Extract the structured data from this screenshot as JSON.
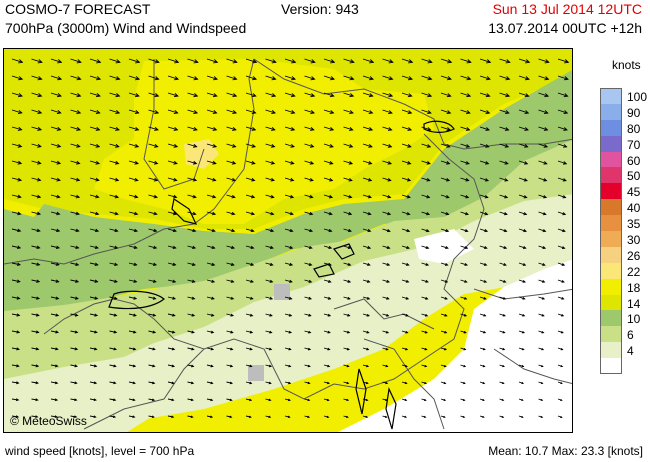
{
  "header": {
    "title": "COSMO-7 FORECAST",
    "subtitle": "700hPa (3000m) Wind and Windspeed",
    "version": "Version: 943",
    "valid_time": "Sun 13 Jul 2014 12UTC",
    "run_time": "13.07.2014 00UTC +12h"
  },
  "colors": {
    "valid_time": "#e00000",
    "yellow": "#f2ee00",
    "yellow_green": "#dee500",
    "light_green": "#c9e087",
    "green": "#9dc86c",
    "pale_green": "#e7f0c6",
    "white": "#ffffff",
    "missing": "#bdbdbd"
  },
  "legend": {
    "unit": "knots",
    "items": [
      {
        "label": "100",
        "color": "#a9c6f0"
      },
      {
        "label": "90",
        "color": "#8aaee9"
      },
      {
        "label": "80",
        "color": "#6e8fe1"
      },
      {
        "label": "70",
        "color": "#7a6acb"
      },
      {
        "label": "60",
        "color": "#e0539e"
      },
      {
        "label": "50",
        "color": "#e0356b"
      },
      {
        "label": "45",
        "color": "#e4002b"
      },
      {
        "label": "40",
        "color": "#d8782a"
      },
      {
        "label": "35",
        "color": "#e69040"
      },
      {
        "label": "30",
        "color": "#f0ac55"
      },
      {
        "label": "26",
        "color": "#f6d280"
      },
      {
        "label": "22",
        "color": "#fae778"
      },
      {
        "label": "18",
        "color": "#f2ee00"
      },
      {
        "label": "14",
        "color": "#dee500"
      },
      {
        "label": "10",
        "color": "#9dc86c"
      },
      {
        "label": "6",
        "color": "#c9e087"
      },
      {
        "label": "4",
        "color": "#e7f0c6"
      },
      {
        "label": "",
        "color": "#ffffff"
      }
    ]
  },
  "copyright": "© MeteoSwiss",
  "footer": {
    "left": "wind speed [knots], level = 700 hPa",
    "right": "Mean:  10.7 Max:  23.3 [knots]"
  }
}
